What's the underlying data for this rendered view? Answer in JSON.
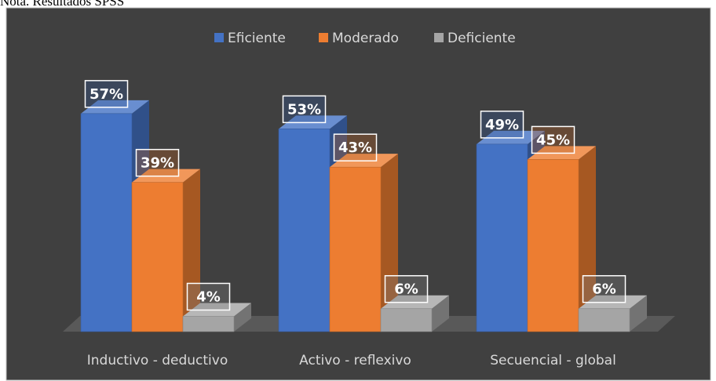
{
  "note": "Nota. Resultados SPSS",
  "chart_data": {
    "type": "bar",
    "categories": [
      "Inductivo - deductivo",
      "Activo - reflexivo",
      "Secuencial - global"
    ],
    "series": [
      {
        "name": "Eficiente",
        "color": "#4472c4",
        "values": [
          57,
          53,
          49
        ],
        "value_labels": [
          "57%",
          "53%",
          "49%"
        ]
      },
      {
        "name": "Moderado",
        "color": "#ed7d31",
        "values": [
          39,
          43,
          45
        ],
        "value_labels": [
          "39%",
          "43%",
          "45%"
        ]
      },
      {
        "name": "Deficiente",
        "color": "#a5a5a5",
        "values": [
          4,
          6,
          6
        ],
        "value_labels": [
          "4%",
          "6%",
          "6%"
        ]
      }
    ],
    "legend": "top"
  }
}
